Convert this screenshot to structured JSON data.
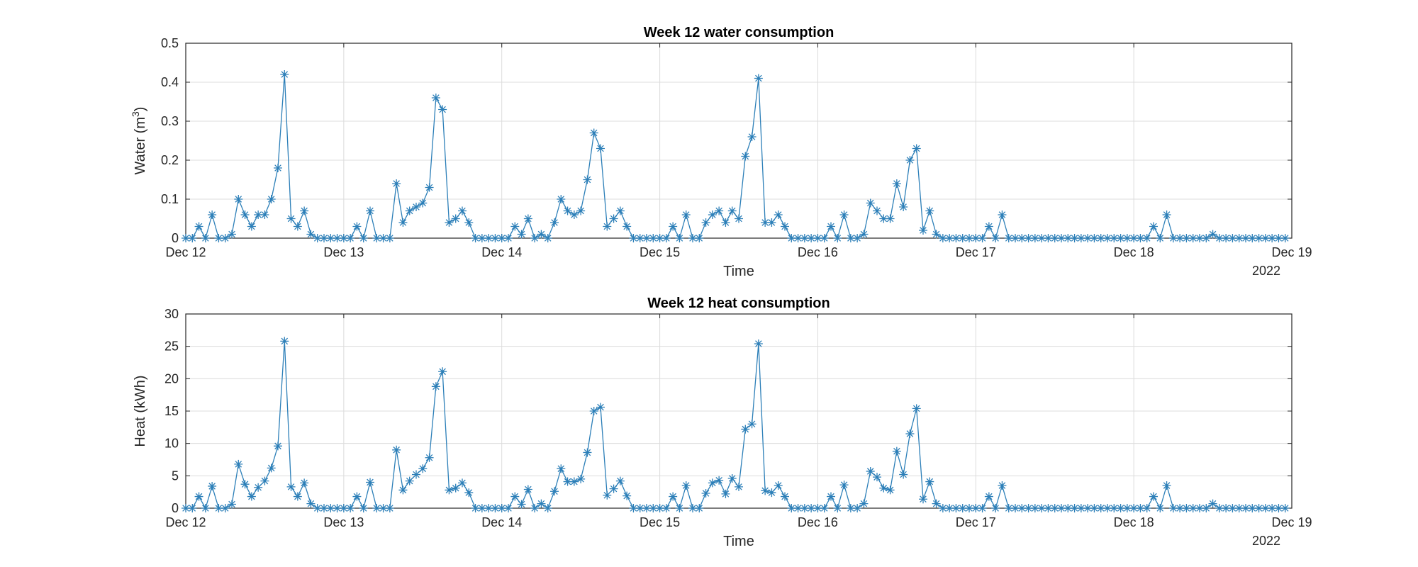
{
  "chart_data": [
    {
      "type": "line",
      "title": "Week 12 water consumption",
      "xlabel": "Time",
      "ylabel": "Water (m",
      "ylabel_sup": "3",
      "ylabel_end": ")",
      "year_label": "2022",
      "xlim_hours": [
        0,
        168
      ],
      "ylim": [
        0,
        0.5
      ],
      "yticks": [
        0,
        0.1,
        0.2,
        0.3,
        0.4,
        0.5
      ],
      "ytick_labels": [
        "0",
        "0.1",
        "0.2",
        "0.3",
        "0.4",
        "0.5"
      ],
      "xtick_labels": [
        "Dec 12",
        "Dec 13",
        "Dec 14",
        "Dec 15",
        "Dec 16",
        "Dec 17",
        "Dec 18",
        "Dec 19"
      ],
      "grid": true,
      "color": "#2c7fb8",
      "marker": "asterisk",
      "series": [
        {
          "x_step_hours": 1,
          "values": [
            0,
            0,
            0.03,
            0,
            0.06,
            0,
            0,
            0.01,
            0.1,
            0.06,
            0.03,
            0.06,
            0.06,
            0.1,
            0.18,
            0.42,
            0.05,
            0.03,
            0.07,
            0.01,
            0,
            0,
            0,
            0,
            0,
            0,
            0.03,
            0,
            0.07,
            0,
            0,
            0,
            0.14,
            0.04,
            0.07,
            0.08,
            0.09,
            0.13,
            0.36,
            0.33,
            0.04,
            0.05,
            0.07,
            0.04,
            0,
            0,
            0,
            0,
            0,
            0,
            0.03,
            0.01,
            0.05,
            0,
            0.01,
            0,
            0.04,
            0.1,
            0.07,
            0.06,
            0.07,
            0.15,
            0.27,
            0.23,
            0.03,
            0.05,
            0.07,
            0.03,
            0,
            0,
            0,
            0,
            0,
            0,
            0.03,
            0,
            0.06,
            0,
            0,
            0.04,
            0.06,
            0.07,
            0.04,
            0.07,
            0.05,
            0.21,
            0.26,
            0.41,
            0.04,
            0.04,
            0.06,
            0.03,
            0,
            0,
            0,
            0,
            0,
            0,
            0.03,
            0,
            0.06,
            0,
            0,
            0.01,
            0.09,
            0.07,
            0.05,
            0.05,
            0.14,
            0.08,
            0.2,
            0.23,
            0.02,
            0.07,
            0.01,
            0,
            0,
            0,
            0,
            0,
            0,
            0,
            0.03,
            0,
            0.06,
            0,
            0,
            0,
            0,
            0,
            0,
            0,
            0,
            0,
            0,
            0,
            0,
            0,
            0,
            0,
            0,
            0,
            0,
            0,
            0,
            0,
            0,
            0.03,
            0,
            0.06,
            0,
            0,
            0,
            0,
            0,
            0,
            0.01,
            0,
            0,
            0,
            0,
            0,
            0,
            0,
            0,
            0,
            0,
            0
          ]
        }
      ]
    },
    {
      "type": "line",
      "title": "Week 12 heat consumption",
      "xlabel": "Time",
      "ylabel": "Heat (kWh)",
      "year_label": "2022",
      "xlim_hours": [
        0,
        168
      ],
      "ylim": [
        0,
        30
      ],
      "yticks": [
        0,
        5,
        10,
        15,
        20,
        25,
        30
      ],
      "ytick_labels": [
        "0",
        "5",
        "10",
        "15",
        "20",
        "25",
        "30"
      ],
      "xtick_labels": [
        "Dec 12",
        "Dec 13",
        "Dec 14",
        "Dec 15",
        "Dec 16",
        "Dec 17",
        "Dec 18",
        "Dec 19"
      ],
      "grid": true,
      "color": "#2c7fb8",
      "marker": "asterisk",
      "series": [
        {
          "x_step_hours": 1,
          "values": [
            0,
            0,
            1.8,
            0,
            3.4,
            0,
            0,
            0.6,
            6.8,
            3.7,
            1.8,
            3.2,
            4.2,
            6.2,
            9.6,
            25.8,
            3.3,
            1.8,
            3.9,
            0.7,
            0,
            0,
            0,
            0,
            0,
            0,
            1.8,
            0,
            4.0,
            0,
            0,
            0,
            9.0,
            2.8,
            4.2,
            5.2,
            6.1,
            7.8,
            18.8,
            21.1,
            2.8,
            3.1,
            3.9,
            2.4,
            0,
            0,
            0,
            0,
            0,
            0,
            1.8,
            0.6,
            2.9,
            0,
            0.7,
            0,
            2.6,
            6.1,
            4.1,
            4.1,
            4.5,
            8.6,
            15.0,
            15.6,
            2.0,
            3.0,
            4.2,
            1.9,
            0,
            0,
            0,
            0,
            0,
            0,
            1.8,
            0,
            3.5,
            0,
            0,
            2.3,
            3.9,
            4.3,
            2.2,
            4.6,
            3.3,
            12.2,
            13.0,
            25.4,
            2.7,
            2.4,
            3.5,
            1.8,
            0,
            0,
            0,
            0,
            0,
            0,
            1.8,
            0,
            3.6,
            0,
            0,
            0.7,
            5.7,
            4.8,
            3.1,
            2.8,
            8.8,
            5.2,
            11.5,
            15.4,
            1.4,
            4.1,
            0.7,
            0,
            0,
            0,
            0,
            0,
            0,
            0,
            1.8,
            0,
            3.5,
            0,
            0,
            0,
            0,
            0,
            0,
            0,
            0,
            0,
            0,
            0,
            0,
            0,
            0,
            0,
            0,
            0,
            0,
            0,
            0,
            0,
            0,
            1.8,
            0,
            3.5,
            0,
            0,
            0,
            0,
            0,
            0,
            0.7,
            0,
            0,
            0,
            0,
            0,
            0,
            0,
            0,
            0,
            0,
            0
          ]
        }
      ]
    }
  ]
}
